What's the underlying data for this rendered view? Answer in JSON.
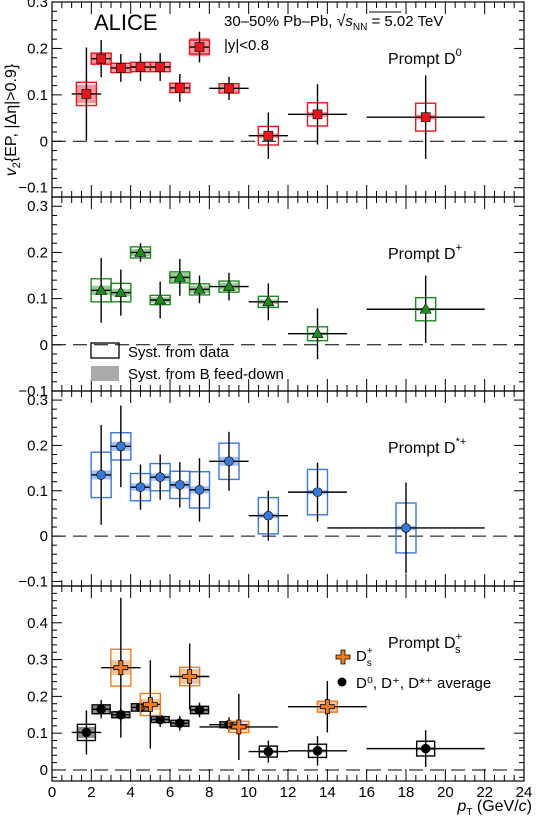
{
  "header": {
    "experiment": "ALICE",
    "system_prefix": "30–50% Pb–Pb, ",
    "energy_sqrt": "s",
    "energy_sub": "NN",
    "energy_value": " = 5.02 TeV",
    "rapidity": "|y|<0.8"
  },
  "y_label": {
    "v": "v",
    "sub": "2",
    "rest": "{EP, |Δη|>0.9}"
  },
  "x_label": {
    "p": "p",
    "sub": "T",
    "unit_open": " (GeV/",
    "c": "c",
    "unit_close": ")"
  },
  "legend_syst": {
    "data": "Syst. from data",
    "feeddown": "Syst. from B feed-down"
  },
  "legend_ds": {
    "ds_base": "D",
    "ds_sub": "s",
    "ds_sup": "+",
    "avg": "D⁰, D⁺, D*⁺ average"
  },
  "colors": {
    "D0": "#e8161e",
    "Dplus": "#1f8a1f",
    "Dstar": "#3a78d8",
    "Ds": "#f07d22",
    "avg": "#000000",
    "feeddown": "#aaaaaa"
  },
  "chart_data": {
    "type": "scatter",
    "x_axis": {
      "label": "pT (GeV/c)",
      "range": [
        0,
        24
      ],
      "ticks": [
        0,
        2,
        4,
        6,
        8,
        10,
        12,
        14,
        16,
        18,
        20,
        22,
        24
      ]
    },
    "y_axis_label": "v2{EP, |Δη|>0.9}",
    "panels": [
      {
        "name": "Prompt D0",
        "label_base": "Prompt D",
        "label_sup": "0",
        "label_sub": "",
        "ylim": [
          -0.12,
          0.3
        ],
        "yticks": [
          -0.1,
          0,
          0.1,
          0.2,
          0.3
        ],
        "yticklabels": [
          "−0.1",
          "0",
          "0.1",
          "0.2",
          "0.3"
        ],
        "series": [
          {
            "name": "Prompt D0",
            "color_key": "D0",
            "marker": "square",
            "points": [
              {
                "x": 1.75,
                "xerr": 0.75,
                "y": 0.102,
                "stat": 0.1,
                "syst": 0.025,
                "fd": 0.02
              },
              {
                "x": 2.5,
                "xerr": 0.5,
                "y": 0.178,
                "stat": 0.04,
                "syst": 0.012,
                "fd": 0.012
              },
              {
                "x": 3.5,
                "xerr": 0.5,
                "y": 0.158,
                "stat": 0.03,
                "syst": 0.01,
                "fd": 0.008
              },
              {
                "x": 4.5,
                "xerr": 0.5,
                "y": 0.16,
                "stat": 0.03,
                "syst": 0.01,
                "fd": 0.008
              },
              {
                "x": 5.5,
                "xerr": 0.5,
                "y": 0.16,
                "stat": 0.03,
                "syst": 0.01,
                "fd": 0.008
              },
              {
                "x": 6.5,
                "xerr": 0.5,
                "y": 0.115,
                "stat": 0.03,
                "syst": 0.01,
                "fd": 0.008
              },
              {
                "x": 7.5,
                "xerr": 0.5,
                "y": 0.203,
                "stat": 0.033,
                "syst": 0.015,
                "fd": 0.02
              },
              {
                "x": 9.0,
                "xerr": 1.0,
                "y": 0.114,
                "stat": 0.025,
                "syst": 0.01,
                "fd": 0.008
              },
              {
                "x": 11.0,
                "xerr": 1.0,
                "y": 0.012,
                "stat": 0.05,
                "syst": 0.02,
                "fd": 0.005
              },
              {
                "x": 13.5,
                "xerr": 1.5,
                "y": 0.058,
                "stat": 0.065,
                "syst": 0.025,
                "fd": 0.005
              },
              {
                "x": 19.0,
                "xerr": 3.0,
                "y": 0.052,
                "stat": 0.09,
                "syst": 0.03,
                "fd": 0.005
              }
            ]
          }
        ]
      },
      {
        "name": "Prompt D+",
        "label_base": "Prompt D",
        "label_sup": "+",
        "label_sub": "",
        "ylim": [
          -0.1,
          0.32
        ],
        "yticks": [
          -0.1,
          0,
          0.1,
          0.2,
          0.3
        ],
        "yticklabels": [
          "−0.1",
          "0",
          "0.1",
          "0.2",
          "0.3"
        ],
        "series": [
          {
            "name": "Prompt D+",
            "color_key": "Dplus",
            "marker": "triangle",
            "points": [
              {
                "x": 2.5,
                "xerr": 0.5,
                "y": 0.118,
                "stat": 0.07,
                "syst": 0.025,
                "fd": 0.01
              },
              {
                "x": 3.5,
                "xerr": 0.5,
                "y": 0.113,
                "stat": 0.05,
                "syst": 0.02,
                "fd": 0.008
              },
              {
                "x": 4.5,
                "xerr": 0.5,
                "y": 0.2,
                "stat": 0.02,
                "syst": 0.012,
                "fd": 0.008
              },
              {
                "x": 5.5,
                "xerr": 0.5,
                "y": 0.097,
                "stat": 0.04,
                "syst": 0.01,
                "fd": 0.006
              },
              {
                "x": 6.5,
                "xerr": 0.5,
                "y": 0.146,
                "stat": 0.04,
                "syst": 0.012,
                "fd": 0.01
              },
              {
                "x": 7.5,
                "xerr": 0.5,
                "y": 0.12,
                "stat": 0.03,
                "syst": 0.012,
                "fd": 0.008
              },
              {
                "x": 9.0,
                "xerr": 1.0,
                "y": 0.126,
                "stat": 0.03,
                "syst": 0.012,
                "fd": 0.008
              },
              {
                "x": 11.0,
                "xerr": 1.0,
                "y": 0.093,
                "stat": 0.04,
                "syst": 0.012,
                "fd": 0.005
              },
              {
                "x": 13.5,
                "xerr": 1.5,
                "y": 0.024,
                "stat": 0.055,
                "syst": 0.015,
                "fd": 0.003
              },
              {
                "x": 19.0,
                "xerr": 3.0,
                "y": 0.077,
                "stat": 0.073,
                "syst": 0.025,
                "fd": 0.003
              }
            ]
          }
        ]
      },
      {
        "name": "Prompt D*+",
        "label_base": "Prompt D",
        "label_sup": "*+",
        "label_sub": "",
        "ylim": [
          -0.11,
          0.32
        ],
        "yticks": [
          -0.1,
          0,
          0.1,
          0.2,
          0.3
        ],
        "yticklabels": [
          "−0.1",
          "0",
          "0.1",
          "0.2",
          "0.3"
        ],
        "series": [
          {
            "name": "Prompt D*+",
            "color_key": "Dstar",
            "marker": "circle",
            "points": [
              {
                "x": 2.5,
                "xerr": 0.5,
                "y": 0.135,
                "stat": 0.11,
                "syst": 0.05,
                "fd": 0.01
              },
              {
                "x": 3.5,
                "xerr": 0.5,
                "y": 0.198,
                "stat": 0.09,
                "syst": 0.03,
                "fd": 0.01
              },
              {
                "x": 4.5,
                "xerr": 0.5,
                "y": 0.108,
                "stat": 0.05,
                "syst": 0.03,
                "fd": 0.008
              },
              {
                "x": 5.5,
                "xerr": 0.5,
                "y": 0.13,
                "stat": 0.05,
                "syst": 0.03,
                "fd": 0.008
              },
              {
                "x": 6.5,
                "xerr": 0.5,
                "y": 0.113,
                "stat": 0.05,
                "syst": 0.03,
                "fd": 0.008
              },
              {
                "x": 7.5,
                "xerr": 0.5,
                "y": 0.102,
                "stat": 0.07,
                "syst": 0.04,
                "fd": 0.008
              },
              {
                "x": 9.0,
                "xerr": 1.0,
                "y": 0.165,
                "stat": 0.065,
                "syst": 0.04,
                "fd": 0.01
              },
              {
                "x": 11.0,
                "xerr": 1.0,
                "y": 0.045,
                "stat": 0.055,
                "syst": 0.04,
                "fd": 0.005
              },
              {
                "x": 13.5,
                "xerr": 1.5,
                "y": 0.097,
                "stat": 0.065,
                "syst": 0.05,
                "fd": 0.005
              },
              {
                "x": 18.0,
                "xerr": 4.0,
                "y": 0.018,
                "stat": 0.1,
                "syst": 0.055,
                "fd": 0.005
              }
            ]
          }
        ]
      },
      {
        "name": "Prompt Ds+",
        "label_base": "Prompt D",
        "label_sup": "+",
        "label_sub": "s",
        "ylim": [
          -0.03,
          0.5
        ],
        "yticks": [
          0,
          0.1,
          0.2,
          0.3,
          0.4
        ],
        "yticklabels": [
          "0",
          "0.1",
          "0.2",
          "0.3",
          "0.4"
        ],
        "series": [
          {
            "name": "D0, D+, D*+ average",
            "color_key": "avg",
            "marker": "circle",
            "points": [
              {
                "x": 1.75,
                "xerr": 0.75,
                "y": 0.102,
                "stat": 0.06,
                "syst": 0.022,
                "fd": 0.015
              },
              {
                "x": 2.5,
                "xerr": 0.5,
                "y": 0.165,
                "stat": 0.025,
                "syst": 0.012,
                "fd": 0.01
              },
              {
                "x": 3.5,
                "xerr": 0.5,
                "y": 0.15,
                "stat": 0.02,
                "syst": 0.008,
                "fd": 0.008
              },
              {
                "x": 4.5,
                "xerr": 0.5,
                "y": 0.17,
                "stat": 0.02,
                "syst": 0.01,
                "fd": 0.008
              },
              {
                "x": 5.5,
                "xerr": 0.5,
                "y": 0.137,
                "stat": 0.02,
                "syst": 0.008,
                "fd": 0.006
              },
              {
                "x": 6.5,
                "xerr": 0.5,
                "y": 0.127,
                "stat": 0.02,
                "syst": 0.008,
                "fd": 0.006
              },
              {
                "x": 7.5,
                "xerr": 0.5,
                "y": 0.163,
                "stat": 0.02,
                "syst": 0.01,
                "fd": 0.01
              },
              {
                "x": 9.0,
                "xerr": 1.0,
                "y": 0.123,
                "stat": 0.02,
                "syst": 0.008,
                "fd": 0.006
              },
              {
                "x": 11.0,
                "xerr": 1.0,
                "y": 0.05,
                "stat": 0.03,
                "syst": 0.015,
                "fd": 0.004
              },
              {
                "x": 13.5,
                "xerr": 1.5,
                "y": 0.052,
                "stat": 0.04,
                "syst": 0.018,
                "fd": 0.004
              },
              {
                "x": 19.0,
                "xerr": 3.0,
                "y": 0.058,
                "stat": 0.05,
                "syst": 0.02,
                "fd": 0.004
              }
            ]
          },
          {
            "name": "Ds+",
            "color_key": "Ds",
            "marker": "cross",
            "points": [
              {
                "x": 3.5,
                "xerr": 1.0,
                "y": 0.278,
                "stat": 0.19,
                "syst": 0.05,
                "fd": 0.02
              },
              {
                "x": 5.0,
                "xerr": 0.5,
                "y": 0.178,
                "stat": 0.12,
                "syst": 0.03,
                "fd": 0.015
              },
              {
                "x": 7.0,
                "xerr": 1.0,
                "y": 0.254,
                "stat": 0.09,
                "syst": 0.025,
                "fd": 0.02
              },
              {
                "x": 9.5,
                "xerr": 2.0,
                "y": 0.117,
                "stat": 0.09,
                "syst": 0.015,
                "fd": 0.01
              },
              {
                "x": 14.0,
                "xerr": 2.0,
                "y": 0.172,
                "stat": 0.07,
                "syst": 0.015,
                "fd": 0.015
              }
            ]
          }
        ]
      }
    ]
  }
}
